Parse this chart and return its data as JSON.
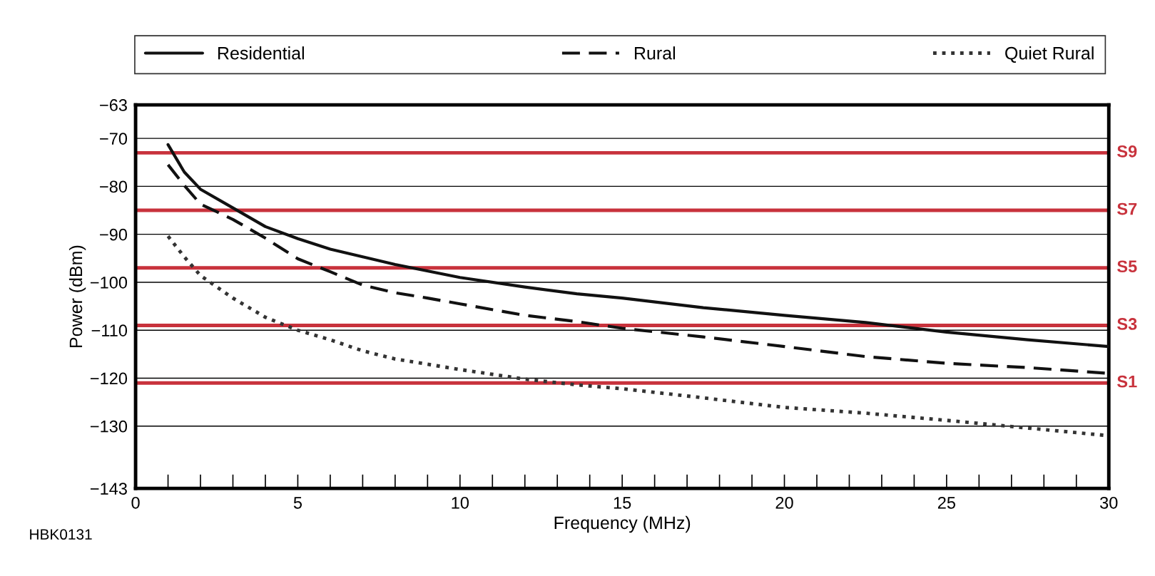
{
  "chart_data": {
    "type": "line",
    "xlabel": "Frequency (MHz)",
    "ylabel": "Power (dBm)",
    "xlim": [
      0,
      30
    ],
    "xticks": [
      0,
      5,
      10,
      15,
      20,
      25,
      30
    ],
    "ylim": [
      -143,
      -63
    ],
    "yticks": [
      -63,
      -70,
      -80,
      -90,
      -100,
      -110,
      -120,
      -130,
      -143
    ],
    "grid": "y",
    "legend": "top",
    "marker": "none",
    "series": [
      {
        "name": "Residential",
        "color": "#111111",
        "line_style": "solid",
        "x": [
          1,
          1.5,
          2,
          3,
          4,
          5,
          6,
          7,
          8,
          10,
          12,
          13.6,
          15,
          17.5,
          20,
          22.5,
          25,
          27.5,
          30
        ],
        "values": [
          -71.3,
          -77,
          -80.6,
          -84.5,
          -88.4,
          -90.9,
          -93.1,
          -94.7,
          -96.3,
          -99,
          -101,
          -102.4,
          -103.3,
          -105.3,
          -106.9,
          -108.4,
          -110.4,
          -112,
          -113.4
        ]
      },
      {
        "name": "Rural",
        "color": "#111111",
        "line_style": "dashed",
        "x": [
          1,
          1.5,
          2,
          3,
          4,
          5,
          6,
          7,
          8,
          9,
          10,
          12,
          13.6,
          15,
          17.5,
          20,
          22.5,
          25,
          27.5,
          30
        ],
        "values": [
          -75.5,
          -79.8,
          -83.7,
          -86.9,
          -90.8,
          -95.1,
          -97.8,
          -100.6,
          -102.2,
          -103.3,
          -104.5,
          -106.9,
          -108.2,
          -109.6,
          -111.4,
          -113.4,
          -115.5,
          -116.9,
          -117.8,
          -119
        ]
      },
      {
        "name": "Quiet Rural",
        "color": "#333333",
        "line_style": "dotted",
        "x": [
          1,
          1.5,
          2,
          3,
          4,
          5,
          6,
          7,
          8,
          10,
          12,
          13.6,
          15,
          17.5,
          20,
          22.5,
          25,
          27.5,
          30
        ],
        "values": [
          -90.4,
          -94.7,
          -98.6,
          -103.3,
          -107.3,
          -110,
          -112,
          -114.3,
          -116,
          -118.2,
          -120.2,
          -121.4,
          -122.2,
          -124.1,
          -126.1,
          -127.3,
          -128.8,
          -130.4,
          -132
        ]
      }
    ],
    "ref_lines": [
      {
        "axis": "y",
        "value": -73,
        "label": "S9",
        "color": "#c8323c"
      },
      {
        "axis": "y",
        "value": -85,
        "label": "S7",
        "color": "#c8323c"
      },
      {
        "axis": "y",
        "value": -97,
        "label": "S5",
        "color": "#c8323c"
      },
      {
        "axis": "y",
        "value": -109,
        "label": "S3",
        "color": "#c8323c"
      },
      {
        "axis": "y",
        "value": -121,
        "label": "S1",
        "color": "#c8323c"
      }
    ],
    "annotations": [
      "HBK0131"
    ]
  }
}
